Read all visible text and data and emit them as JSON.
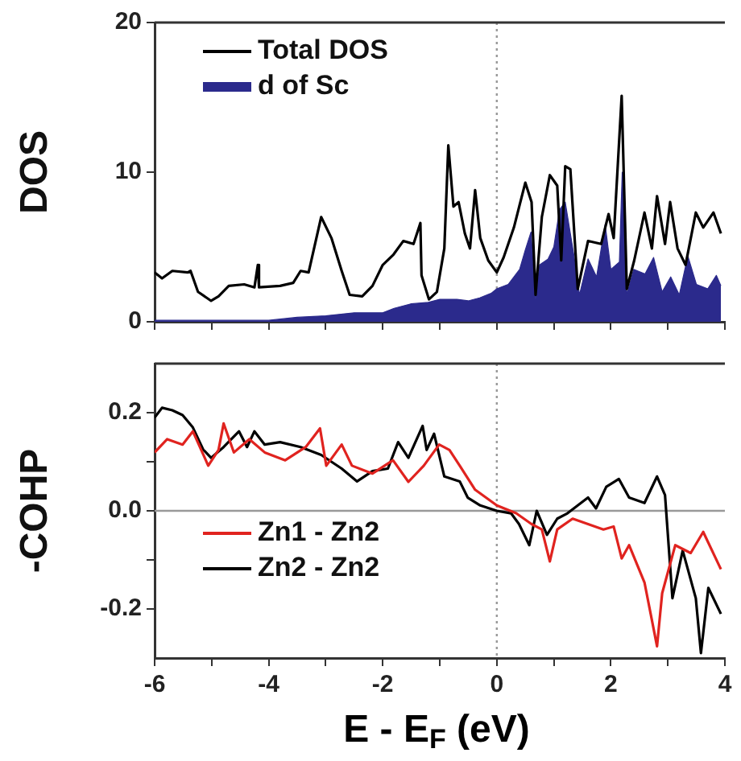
{
  "chart_data": [
    {
      "type": "line",
      "ylabel": "DOS",
      "xlim": [
        -6,
        4
      ],
      "xticks": [
        -6,
        {
          "value": -5,
          "label": null
        },
        -4,
        {
          "value": -3,
          "label": null
        },
        -2,
        {
          "value": -1,
          "label": null
        },
        0,
        {
          "value": 1,
          "label": null
        },
        2,
        {
          "value": 3,
          "label": null
        },
        4
      ],
      "ylim": [
        0,
        20
      ],
      "yticks": [
        0,
        10,
        20
      ],
      "tick_labels": "y",
      "grid": false,
      "legend": "top left",
      "ref_lines": [
        {
          "axis": "x",
          "value": 0,
          "color": "#999999",
          "line_style": "dotted"
        }
      ],
      "series": [
        {
          "name": "Total DOS",
          "type": "line",
          "color": "#000000",
          "x": [
            -6,
            -5.87,
            -5.69,
            -5.42,
            -5.37,
            -5.24,
            -5.01,
            -4.88,
            -4.7,
            -4.43,
            -4.25,
            -4.19,
            -4.17,
            -3.8,
            -3.57,
            -3.44,
            -3.3,
            -3.08,
            -2.9,
            -2.72,
            -2.58,
            -2.36,
            -2.18,
            -2,
            -1.81,
            -1.64,
            -1.46,
            -1.34,
            -1.32,
            -1.19,
            -1.05,
            -0.92,
            -0.85,
            -0.76,
            -0.67,
            -0.56,
            -0.47,
            -0.38,
            -0.29,
            -0.15,
            0,
            0.12,
            0.3,
            0.5,
            0.61,
            0.68,
            0.79,
            0.93,
            1.06,
            1.13,
            1.2,
            1.29,
            1.42,
            1.6,
            1.83,
            1.96,
            2.05,
            2.19,
            2.28,
            2.41,
            2.59,
            2.72,
            2.81,
            2.95,
            3.04,
            3.17,
            3.31,
            3.49,
            3.62,
            3.8,
            3.93
          ],
          "values": [
            3.3,
            2.9,
            3.4,
            3.3,
            3.4,
            2,
            1.4,
            1.7,
            2.4,
            2.5,
            2.3,
            3.8,
            2.3,
            2.4,
            2.6,
            3.4,
            3.3,
            7,
            5.6,
            3.4,
            1.8,
            1.7,
            2.4,
            3.8,
            4.5,
            5.4,
            5.2,
            6.6,
            3.1,
            1.5,
            2,
            4.9,
            11.8,
            7.7,
            8,
            5.9,
            4.9,
            8.8,
            5.6,
            4.1,
            3.3,
            4.3,
            6.3,
            9.3,
            8,
            1.8,
            7,
            9.8,
            9.1,
            4.1,
            10.4,
            10.2,
            2.2,
            5.4,
            5.2,
            7.2,
            5.6,
            15.1,
            2.2,
            4.1,
            7.3,
            4.9,
            8.4,
            5.2,
            8,
            4.9,
            3.8,
            7.3,
            6.3,
            7.3,
            5.9
          ]
        },
        {
          "name": "d of Sc",
          "type": "area",
          "color": "#2b2a8c",
          "x": [
            -6,
            -4,
            -3.5,
            -3,
            -2.5,
            -2,
            -1.8,
            -1.5,
            -1.2,
            -1,
            -0.7,
            -0.5,
            -0.3,
            -0.1,
            0,
            0.2,
            0.4,
            0.5,
            0.6,
            0.68,
            0.75,
            0.9,
            1,
            1.1,
            1.2,
            1.35,
            1.45,
            1.6,
            1.75,
            1.9,
            2,
            2.15,
            2.2,
            2.28,
            2.4,
            2.6,
            2.75,
            2.9,
            3.05,
            3.2,
            3.35,
            3.5,
            3.7,
            3.85,
            3.93
          ],
          "values": [
            0.1,
            0.1,
            0.3,
            0.4,
            0.6,
            0.6,
            0.9,
            1.2,
            1.3,
            1.5,
            1.5,
            1.4,
            1.6,
            1.9,
            2.2,
            2.5,
            3.5,
            4.8,
            6,
            1.5,
            3.8,
            4.2,
            5,
            7.5,
            8,
            4.5,
            1.8,
            4.2,
            3,
            6.5,
            3.5,
            4,
            10,
            1.8,
            3.5,
            3.2,
            4.3,
            2,
            3,
            1.8,
            4.4,
            2.5,
            2.2,
            3.1,
            2.4
          ]
        }
      ]
    },
    {
      "type": "line",
      "ylabel": "-COHP",
      "xlabel": "E - E$_{F}$ (eV)",
      "xlim": [
        -6,
        4
      ],
      "xticks": [
        -6,
        {
          "value": -5,
          "label": null
        },
        -4,
        {
          "value": -3,
          "label": null
        },
        -2,
        {
          "value": -1,
          "label": null
        },
        0,
        {
          "value": 1,
          "label": null
        },
        2,
        {
          "value": 3,
          "label": null
        },
        4
      ],
      "ylim": [
        -0.3,
        0.3
      ],
      "yticks": [
        -0.2,
        {
          "value": -0.1,
          "label": null
        },
        {
          "value": 0,
          "label": "0.0"
        },
        {
          "value": 0.1,
          "label": null
        },
        0.2
      ],
      "grid": false,
      "legend": "left",
      "ref_lines": [
        {
          "axis": "x",
          "value": 0,
          "color": "#999999",
          "line_style": "dotted"
        },
        {
          "axis": "y",
          "value": 0,
          "color": "#999999",
          "line_style": "solid"
        }
      ],
      "series": [
        {
          "name": "Zn1 - Zn2",
          "type": "line",
          "color": "#e0231f",
          "x": [
            -6,
            -5.78,
            -5.51,
            -5.33,
            -5.06,
            -4.88,
            -4.79,
            -4.61,
            -4.34,
            -4.07,
            -3.71,
            -3.35,
            -3.1,
            -2.99,
            -2.72,
            -2.54,
            -2.18,
            -1.82,
            -1.55,
            -1.28,
            -1.01,
            -0.83,
            -0.65,
            -0.38,
            0,
            0.34,
            0.61,
            0.79,
            0.93,
            1.06,
            1.33,
            1.6,
            1.87,
            2.05,
            2.19,
            2.32,
            2.59,
            2.81,
            2.9,
            3.13,
            3.4,
            3.62,
            3.93
          ],
          "values": [
            0.119,
            0.146,
            0.135,
            0.162,
            0.092,
            0.124,
            0.178,
            0.119,
            0.146,
            0.119,
            0.103,
            0.13,
            0.168,
            0.092,
            0.135,
            0.092,
            0.076,
            0.103,
            0.059,
            0.092,
            0.135,
            0.124,
            0.092,
            0.043,
            0.011,
            -0.005,
            -0.027,
            -0.038,
            -0.103,
            -0.038,
            -0.016,
            -0.027,
            -0.038,
            -0.032,
            -0.097,
            -0.07,
            -0.146,
            -0.276,
            -0.168,
            -0.07,
            -0.086,
            -0.043,
            -0.119
          ]
        },
        {
          "name": "Zn2 - Zn2",
          "type": "line",
          "color": "#000000",
          "x": [
            -6,
            -5.87,
            -5.69,
            -5.51,
            -5.33,
            -5.15,
            -5.01,
            -4.79,
            -4.52,
            -4.38,
            -4.25,
            -4.07,
            -3.8,
            -3.44,
            -3.08,
            -2.72,
            -2.45,
            -2.18,
            -1.91,
            -1.73,
            -1.55,
            -1.3,
            -1.23,
            -1.1,
            -0.92,
            -0.65,
            -0.51,
            -0.29,
            0,
            0.25,
            0.39,
            0.57,
            0.7,
            0.88,
            1.06,
            1.24,
            1.42,
            1.6,
            1.74,
            1.92,
            2.14,
            2.32,
            2.59,
            2.81,
            2.95,
            3.08,
            3.26,
            3.49,
            3.58,
            3.71,
            3.93
          ],
          "values": [
            0.19,
            0.21,
            0.205,
            0.195,
            0.17,
            0.125,
            0.108,
            0.13,
            0.162,
            0.13,
            0.162,
            0.135,
            0.14,
            0.13,
            0.114,
            0.086,
            0.06,
            0.081,
            0.086,
            0.14,
            0.108,
            0.173,
            0.124,
            0.157,
            0.07,
            0.06,
            0.027,
            0.011,
            0,
            -0.005,
            -0.027,
            -0.07,
            0,
            -0.049,
            -0.016,
            -0.005,
            0.011,
            0.027,
            0.005,
            0.049,
            0.065,
            0.027,
            0.016,
            0.07,
            0.032,
            -0.178,
            -0.081,
            -0.178,
            -0.29,
            -0.157,
            -0.21
          ]
        }
      ]
    }
  ]
}
